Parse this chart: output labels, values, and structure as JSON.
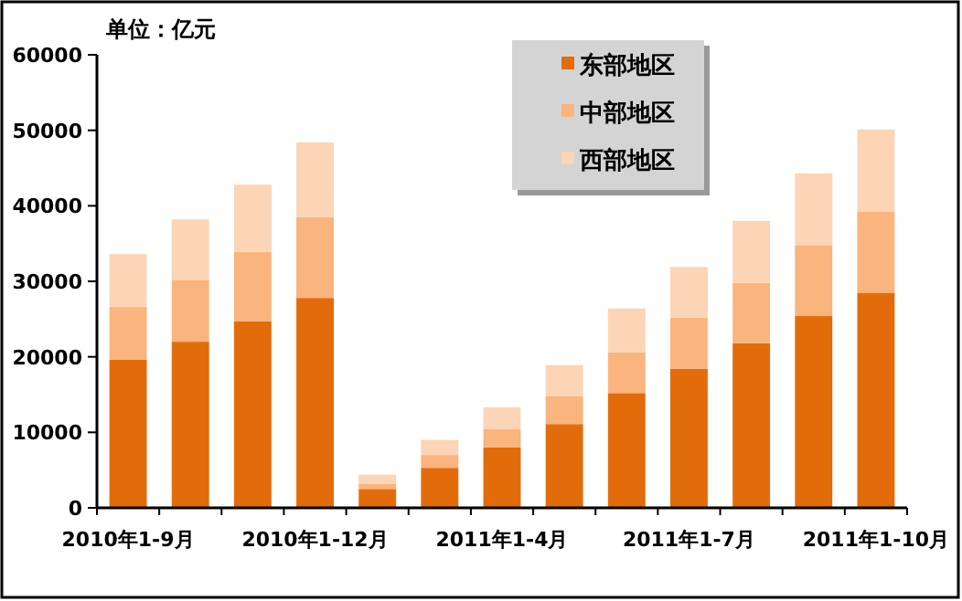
{
  "chart_data": {
    "type": "bar",
    "stacked": true,
    "ylabel": "单位：亿元",
    "categories": [
      "2010年1-9月",
      null,
      null,
      "2010年1-12月",
      null,
      null,
      "2011年1-4月",
      null,
      null,
      "2011年1-7月",
      null,
      null,
      "2011年1-10月"
    ],
    "series": [
      {
        "name": "东部地区",
        "color": "#e36c0a",
        "values": [
          19600,
          22000,
          24700,
          27800,
          2500,
          5300,
          8000,
          11100,
          15200,
          18400,
          21800,
          25400,
          28500
        ]
      },
      {
        "name": "中部地区",
        "color": "#fab47d",
        "values": [
          7000,
          8200,
          9200,
          10700,
          700,
          1700,
          2400,
          3700,
          5400,
          6800,
          8000,
          9400,
          10700
        ]
      },
      {
        "name": "西部地区",
        "color": "#fbd5b5",
        "values": [
          7000,
          8000,
          8900,
          9900,
          1200,
          2000,
          2900,
          4100,
          5800,
          6700,
          8200,
          9500,
          10900
        ]
      }
    ],
    "ylim": [
      0,
      60000
    ],
    "yticks": [
      0,
      10000,
      20000,
      30000,
      40000,
      50000,
      60000
    ],
    "grid": false,
    "legend": "top"
  }
}
